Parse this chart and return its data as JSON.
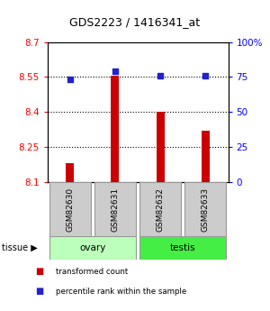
{
  "title": "GDS2223 / 1416341_at",
  "samples": [
    "GSM82630",
    "GSM82631",
    "GSM82632",
    "GSM82633"
  ],
  "bar_values": [
    8.18,
    8.555,
    8.4,
    8.32
  ],
  "percentile_values": [
    73,
    79,
    76,
    76
  ],
  "ylim_left": [
    8.1,
    8.7
  ],
  "ylim_right": [
    0,
    100
  ],
  "yticks_left": [
    8.1,
    8.25,
    8.4,
    8.55,
    8.7
  ],
  "yticks_right": [
    0,
    25,
    50,
    75,
    100
  ],
  "ytick_labels_left": [
    "8.1",
    "8.25",
    "8.4",
    "8.55",
    "8.7"
  ],
  "ytick_labels_right": [
    "0",
    "25",
    "50",
    "75",
    "100%"
  ],
  "bar_color": "#cc0000",
  "dot_color": "#2222cc",
  "tissue_groups": [
    {
      "label": "ovary",
      "samples": [
        0,
        1
      ],
      "color": "#bbffbb"
    },
    {
      "label": "testis",
      "samples": [
        2,
        3
      ],
      "color": "#44ee44"
    }
  ],
  "legend_items": [
    {
      "label": "transformed count",
      "color": "#cc0000"
    },
    {
      "label": "percentile rank within the sample",
      "color": "#2222cc"
    }
  ],
  "sample_box_color": "#cccccc",
  "sample_box_edge": "#999999",
  "gridline_ticks": [
    8.25,
    8.4,
    8.55
  ],
  "bar_width": 0.18
}
